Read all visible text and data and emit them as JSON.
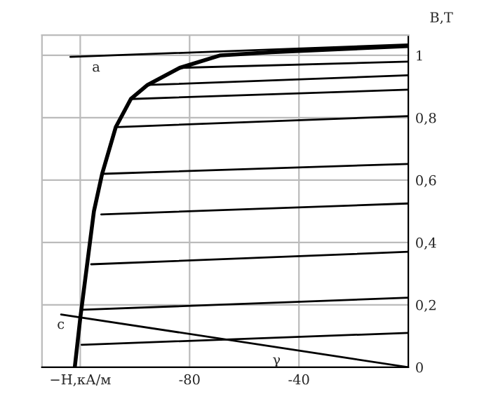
{
  "chart_data": {
    "type": "line",
    "ylabel": "B,T",
    "xlim": [
      -134,
      0
    ],
    "ylim": [
      0,
      1.065
    ],
    "xticks": [
      {
        "value": -120,
        "label": "−H,кА/м"
      },
      -80,
      -40
    ],
    "yticks": [
      0,
      {
        "value": 0.2,
        "label": "0,2"
      },
      {
        "value": 0.4,
        "label": "0,4"
      },
      {
        "value": 0.6,
        "label": "0,6"
      },
      {
        "value": 0.8,
        "label": "0,8"
      },
      1
    ],
    "grid": true,
    "marker": "none",
    "line_style": "solid",
    "series": [
      {
        "color": "#000000",
        "x": [
          -122,
          -120,
          -115,
          -112,
          -107,
          -101.5,
          -95.4,
          -83.6,
          -68.7,
          -50,
          0
        ],
        "values": [
          0,
          0.157,
          0.5,
          0.62,
          0.77,
          0.86,
          0.905,
          0.96,
          1.0,
          1.01,
          1.03
        ]
      },
      {
        "color": "#000000",
        "x": [
          -123.6,
          0
        ],
        "values": [
          0.995,
          1.035
        ]
      },
      {
        "color": "#000000",
        "x": [
          -83.6,
          0
        ],
        "values": [
          0.96,
          0.98
        ]
      },
      {
        "color": "#000000",
        "x": [
          -95.4,
          0
        ],
        "values": [
          0.905,
          0.936
        ]
      },
      {
        "color": "#000000",
        "x": [
          -101.5,
          0
        ],
        "values": [
          0.86,
          0.89
        ]
      },
      {
        "color": "#000000",
        "x": [
          -107,
          0
        ],
        "values": [
          0.77,
          0.805
        ]
      },
      {
        "color": "#000000",
        "x": [
          -112,
          0
        ],
        "values": [
          0.62,
          0.652
        ]
      },
      {
        "color": "#000000",
        "x": [
          -112.3,
          0
        ],
        "values": [
          0.49,
          0.525
        ]
      },
      {
        "color": "#000000",
        "x": [
          -116,
          0
        ],
        "values": [
          0.33,
          0.37
        ]
      },
      {
        "color": "#000000",
        "x": [
          -119.5,
          0
        ],
        "values": [
          0.184,
          0.223
        ]
      },
      {
        "color": "#000000",
        "x": [
          -119.5,
          0
        ],
        "values": [
          0.072,
          0.11
        ]
      },
      {
        "color": "#000000",
        "x": [
          -127,
          0
        ],
        "values": [
          0.169,
          0
        ]
      }
    ],
    "annotations": [
      {
        "text": "a",
        "x": -112,
        "y": 1.0
      },
      {
        "text": "c",
        "x": -125,
        "y": 0.175
      },
      {
        "text": "γ",
        "x": -46,
        "y": 0.061
      }
    ]
  }
}
